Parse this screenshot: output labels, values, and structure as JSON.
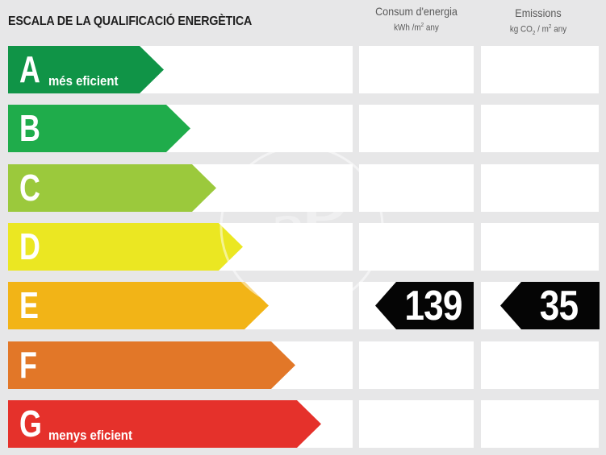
{
  "header": {
    "title": "ESCALA DE LA QUALIFICACIÓ ENERGÈTICA",
    "consumption": {
      "label": "Consum d'energia",
      "unit_pre": "kWh /m",
      "unit_sup": "2",
      "unit_post": "  any"
    },
    "emissions": {
      "label": "Emissions",
      "unit_pre": "kg CO",
      "unit_sub": "2",
      "unit_mid": "  / m",
      "unit_sup": "2",
      "unit_post": "  any"
    }
  },
  "bands": [
    {
      "letter": "A",
      "sub": "més eficient",
      "color": "#109447"
    },
    {
      "letter": "B",
      "sub": "",
      "color": "#1fac4b"
    },
    {
      "letter": "C",
      "sub": "",
      "color": "#9bc93c"
    },
    {
      "letter": "D",
      "sub": "",
      "color": "#ebe722"
    },
    {
      "letter": "E",
      "sub": "",
      "color": "#f2b417"
    },
    {
      "letter": "F",
      "sub": "",
      "color": "#e27728"
    },
    {
      "letter": "G",
      "sub": "menys eficient",
      "color": "#e5312b"
    }
  ],
  "rating": {
    "band": "E",
    "consumption_value": "139",
    "emissions_value": "35"
  }
}
